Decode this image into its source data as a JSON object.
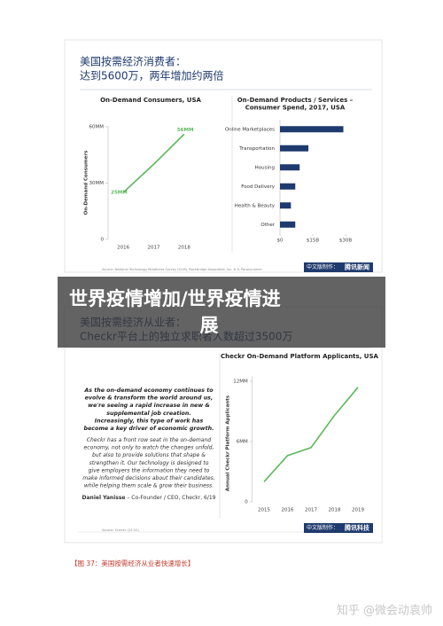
{
  "slides": [
    {
      "title_lines": [
        "美国按需经济消费者：",
        "达到5600万，两年增加约两倍"
      ],
      "source": "Source: National Technology Readiness Survey (4/18), Rockbridge Associates, Inc. & A. Parasuraman",
      "credit": "中文版制作：",
      "brand": "腾讯新闻"
    },
    {
      "title_lines": [
        "美国按需经济从业者：",
        "Checkr平台上的独立求职者人数超过3500万"
      ],
      "source": "Source: Checkr (Q1'20)",
      "credit": "中文版制作：",
      "brand": "腾讯科技"
    }
  ],
  "quote": {
    "bold_lines": [
      "As the on-demand economy continues to",
      "evolve & transform the world around us,",
      "we're seeing a rapid increase in new &",
      "supplemental job creation.",
      "Increasingly, this type of work has",
      "become a key driver of economic growth."
    ],
    "body_lines": [
      "Checkr has a front row seat in the on-demand",
      "economy, not only to watch the changes unfold,",
      "but also to provide solutions that shape &",
      "strengthen it. Our technology is designed to",
      "give employers the information they need to",
      "make informed decisions about their candidates,",
      "while helping them scale & grow their business."
    ],
    "author": "Daniel Yanisse",
    "author_role": " – Co-Founder / CEO, Checkr, 6/19"
  },
  "overlay_lines": [
    "世界疫情增加/世界疫情进",
    "展"
  ],
  "caption": "【图 37：美国按需经济从业者快速增长】",
  "watermark": "知乎 @微会动袁帅",
  "chart_data": [
    {
      "type": "line",
      "title": "On-Demand Consumers, USA",
      "ylabel": "On-Demand Consumers",
      "categories": [
        "2016",
        "2017",
        "2018"
      ],
      "values": [
        25,
        40,
        56
      ],
      "value_labels": [
        "25MM",
        null,
        "56MM"
      ],
      "color": "#5cb85c",
      "ylim": [
        0,
        60
      ],
      "yticks": [
        0,
        {
          "value": 30,
          "label": "30MM"
        },
        {
          "value": 60,
          "label": "60MM"
        }
      ]
    },
    {
      "type": "barh",
      "title_lines": [
        "On-Demand Products / Services –",
        "Consumer Spend, 2017, USA"
      ],
      "categories": [
        "Online Marketplaces",
        "Transportation",
        "Housing",
        "Food Delivery",
        "Health & Beauty",
        "Other"
      ],
      "values": [
        29,
        13,
        9,
        7,
        5,
        7
      ],
      "color": "#1f3a6e",
      "xlim": [
        0,
        30
      ],
      "xticks": [
        {
          "value": 0,
          "label": "$0"
        },
        {
          "value": 15,
          "label": "$15B"
        },
        {
          "value": 30,
          "label": "$30B"
        }
      ]
    },
    {
      "type": "line",
      "title": "Checkr On-Demand Platform Applicants, USA",
      "ylabel": "Annual Checkr Platform Applicants",
      "categories": [
        "2015",
        "2016",
        "2017",
        "2018",
        "2019"
      ],
      "values": [
        2,
        4.6,
        5.4,
        8.6,
        11.4
      ],
      "color": "#5cb85c",
      "ylim": [
        0,
        12.5
      ],
      "yticks": [
        0,
        {
          "value": 6,
          "label": "6MM"
        },
        {
          "value": 12,
          "label": "12MM"
        }
      ]
    }
  ]
}
